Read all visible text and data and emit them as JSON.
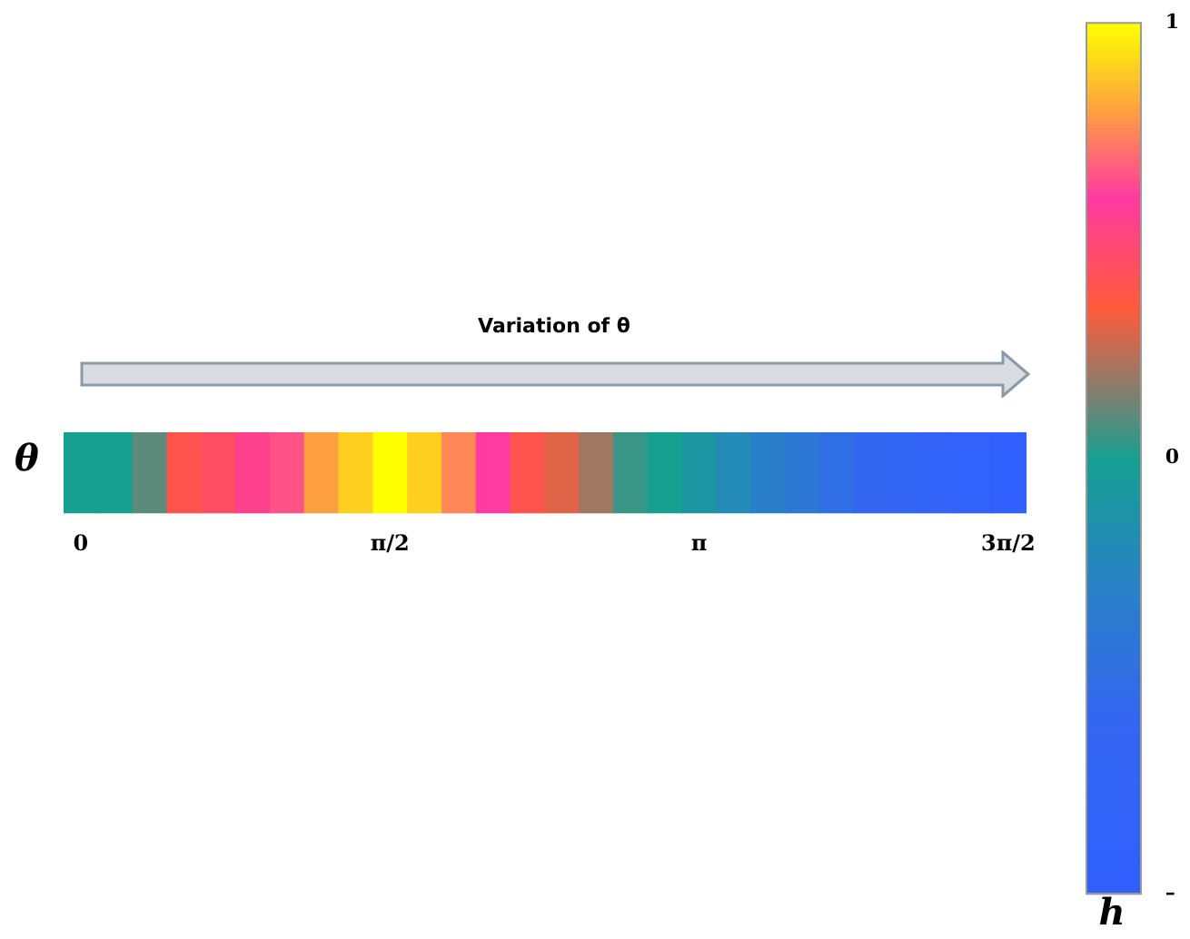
{
  "chart_data": {
    "type": "heatmap",
    "ylabel": "θ",
    "clabel": "h",
    "annotations": [
      "Variation of θ"
    ],
    "categories": [
      "0",
      null,
      null,
      null,
      null,
      null,
      null,
      null,
      null,
      "π/2",
      null,
      null,
      null,
      null,
      null,
      null,
      null,
      null,
      "π",
      null,
      null,
      null,
      null,
      null,
      null,
      null,
      null,
      "3π/2"
    ],
    "y_categories": [
      null
    ],
    "cells": [
      [
        0,
        0,
        0.1,
        0.4,
        0.45,
        0.55,
        0.65,
        0.8,
        0.9,
        1,
        0.9,
        0.75,
        0.6,
        0.4,
        0.3,
        0.2,
        0.05,
        0,
        -0.1,
        -0.2,
        -0.3,
        -0.4,
        -0.5,
        -0.6,
        -0.7,
        -0.8,
        -0.9,
        -1
      ]
    ],
    "clim": [
      -1,
      1
    ],
    "cticks": [
      1,
      0,
      {
        "value": -1,
        "label": "–"
      }
    ]
  }
}
